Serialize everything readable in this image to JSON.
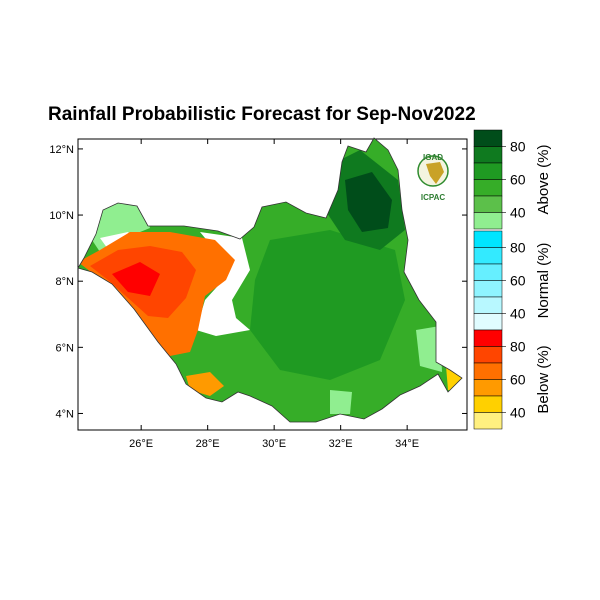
{
  "title": "Rainfall Probabilistic Forecast for Sep-Nov2022",
  "logo": {
    "top_text": "IGAD",
    "bottom_text": "ICPAC"
  },
  "axes": {
    "lat_ticks": [
      "12°N",
      "10°N",
      "8°N",
      "6°N",
      "4°N"
    ],
    "lon_ticks": [
      "26°E",
      "28°E",
      "30°E",
      "32°E",
      "34°E"
    ],
    "lat_range": [
      3.5,
      12.3
    ],
    "lon_range": [
      24.1,
      35.8
    ]
  },
  "legend": {
    "above": {
      "title": "Above (%)",
      "labels": [
        "80",
        "60",
        "40"
      ],
      "colors": [
        "#004d1a",
        "#0f7a1f",
        "#1f9a22",
        "#36ad28",
        "#5cc04a",
        "#90ee90"
      ]
    },
    "normal": {
      "title": "Normal (%)",
      "labels": [
        "80",
        "60",
        "40"
      ],
      "colors": [
        "#00e5ff",
        "#33eaff",
        "#66efff",
        "#8ff4ff",
        "#b8f8ff",
        "#e0fcff"
      ]
    },
    "below": {
      "title": "Below (%)",
      "labels": [
        "80",
        "60",
        "40"
      ],
      "colors": [
        "#ff0000",
        "#ff4500",
        "#ff7000",
        "#ff9a00",
        "#ffd000",
        "#fff080"
      ]
    }
  },
  "regions": [
    {
      "name": "north-west-fringe",
      "category": "above",
      "level": 1
    },
    {
      "name": "west-red-core",
      "category": "below",
      "level": 1
    },
    {
      "name": "west-orange",
      "category": "below",
      "level": 3
    },
    {
      "name": "south-west-small",
      "category": "below",
      "level": 4
    },
    {
      "name": "central-green",
      "category": "above",
      "level": 3
    },
    {
      "name": "north-east-dark",
      "category": "above",
      "level": 0
    },
    {
      "name": "south-east-yellow",
      "category": "below",
      "level": 5
    }
  ]
}
